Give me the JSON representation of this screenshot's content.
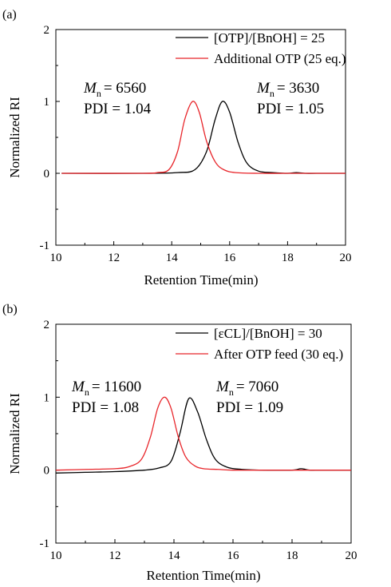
{
  "chart_data": [
    {
      "type": "line",
      "panel_label": "(a)",
      "xlabel": "Retention Time(min)",
      "ylabel": "Normalized RI",
      "xlim": [
        10,
        20
      ],
      "ylim": [
        -1,
        2
      ],
      "xticks": [
        10,
        12,
        14,
        16,
        18,
        20
      ],
      "yticks": [
        -1,
        0,
        1,
        2
      ],
      "legend_position": "top-right",
      "series": [
        {
          "name": "[OTP]/[BnOH] = 25",
          "color": "#000000",
          "x": [
            10.2,
            13.0,
            14.2,
            14.8,
            15.2,
            15.5,
            15.75,
            16.0,
            16.3,
            16.6,
            17.0,
            17.5,
            18.0,
            18.3,
            18.6,
            19.0,
            20.0
          ],
          "y": [
            0.0,
            0.0,
            0.01,
            0.05,
            0.3,
            0.75,
            1.0,
            0.85,
            0.42,
            0.14,
            0.03,
            0.01,
            0.0,
            0.01,
            0.0,
            0.0,
            0.0
          ]
        },
        {
          "name": "Additional OTP (25 eq.)",
          "color": "#e8262b",
          "x": [
            10.2,
            13.0,
            13.5,
            13.9,
            14.2,
            14.45,
            14.72,
            14.95,
            15.2,
            15.5,
            15.8,
            16.2,
            17.0,
            18.0,
            20.0
          ],
          "y": [
            0.0,
            0.0,
            0.01,
            0.05,
            0.3,
            0.75,
            1.0,
            0.85,
            0.45,
            0.16,
            0.05,
            0.01,
            0.0,
            0.0,
            0.0
          ]
        }
      ],
      "annotations": [
        {
          "mn_label": "M",
          "mn_sub": "n",
          "mn_value": "= 6560",
          "pdi": "PDI = 1.04"
        },
        {
          "mn_label": "M",
          "mn_sub": "n",
          "mn_value": "= 3630",
          "pdi": "PDI = 1.05"
        }
      ]
    },
    {
      "type": "line",
      "panel_label": "(b)",
      "xlabel": "Retention Time(min)",
      "ylabel": "Normalized RI",
      "xlim": [
        10,
        20
      ],
      "ylim": [
        -1,
        2
      ],
      "xticks": [
        10,
        12,
        14,
        16,
        18,
        20
      ],
      "yticks": [
        -1,
        0,
        1,
        2
      ],
      "legend_position": "top-right",
      "series": [
        {
          "name": "[εCL]/[BnOH] = 30",
          "color": "#000000",
          "x": [
            10.0,
            11.0,
            12.0,
            13.0,
            13.5,
            13.9,
            14.2,
            14.5,
            14.8,
            15.1,
            15.4,
            15.8,
            16.3,
            17.0,
            18.0,
            18.3,
            18.6,
            19.0,
            20.0
          ],
          "y": [
            -0.04,
            -0.03,
            -0.02,
            0.0,
            0.03,
            0.12,
            0.5,
            0.98,
            0.8,
            0.42,
            0.15,
            0.04,
            0.01,
            0.0,
            0.0,
            0.02,
            0.0,
            0.0,
            0.0
          ]
        },
        {
          "name": "After OTP feed (30 eq.)",
          "color": "#e8262b",
          "x": [
            10.0,
            11.0,
            12.0,
            12.5,
            12.9,
            13.2,
            13.45,
            13.68,
            13.9,
            14.15,
            14.4,
            14.7,
            15.0,
            15.5,
            16.0,
            17.0,
            18.0,
            20.0
          ],
          "y": [
            0.0,
            0.01,
            0.02,
            0.05,
            0.15,
            0.45,
            0.85,
            1.0,
            0.85,
            0.45,
            0.18,
            0.06,
            0.02,
            0.01,
            0.0,
            0.0,
            0.0,
            0.0
          ]
        }
      ],
      "annotations": [
        {
          "mn_label": "M",
          "mn_sub": "n",
          "mn_value": "= 11600",
          "pdi": "PDI = 1.08"
        },
        {
          "mn_label": "M",
          "mn_sub": "n",
          "mn_value": "= 7060",
          "pdi": "PDI = 1.09"
        }
      ]
    }
  ]
}
